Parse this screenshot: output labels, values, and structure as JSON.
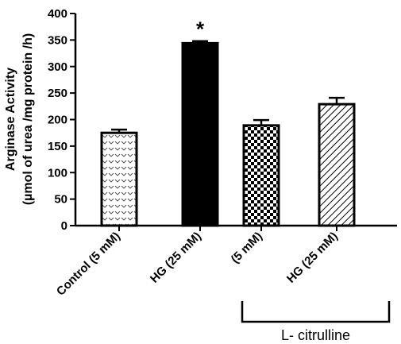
{
  "chart_data": {
    "type": "bar",
    "ylabel_line1": "Arginase Activity",
    "ylabel_line2": "(µmol of urea /mg protein /h)",
    "ylim": [
      0,
      400
    ],
    "yticks": [
      "0",
      "50",
      "100",
      "150",
      "200",
      "250",
      "300",
      "350",
      "400"
    ],
    "categories": [
      "Control (5 mM)",
      "HG (25 mM)",
      "(5 mM)",
      "HG (25 mM)"
    ],
    "values": [
      175,
      344,
      189,
      229
    ],
    "errors": [
      6,
      4,
      10,
      12
    ],
    "patterns": [
      "chevron",
      "solid-black",
      "checkerboard",
      "diagonal-hatch"
    ],
    "annotations": [
      {
        "category_index": 1,
        "text": "*"
      }
    ],
    "group_bracket": {
      "label": "L- citrulline",
      "categories": [
        2,
        3
      ]
    },
    "grid": false,
    "legend": "none"
  }
}
